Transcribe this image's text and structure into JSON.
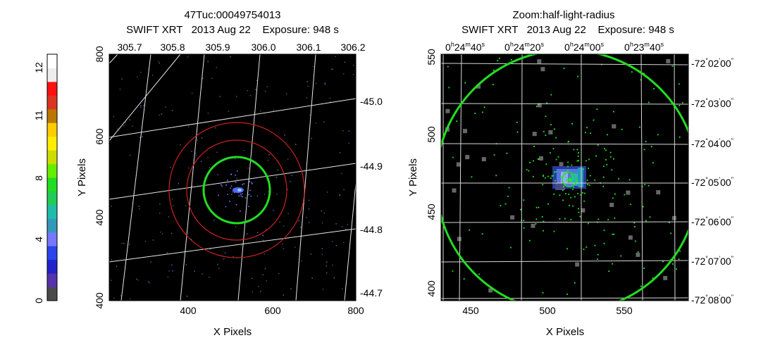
{
  "colorbar": {
    "tick_labels": [
      "0",
      "4",
      "8",
      "11",
      "12"
    ],
    "colors": [
      "#4a4a4a",
      "#5533aa",
      "#2222cc",
      "#2a44ee",
      "#7777ff",
      "#3399bb",
      "#22bbaa",
      "#22cc55",
      "#22dd22",
      "#66ee00",
      "#ccdd00",
      "#ffee00",
      "#ffcc00",
      "#bb7700",
      "#dd3322",
      "#ff1111",
      "#eeeeee",
      "#ffffff"
    ]
  },
  "left_panel": {
    "title_line1": "47Tuc:00049754013",
    "title_line2": "SWIFT XRT   2013 Aug 22    Exposure: 948 s",
    "xlabel": "X Pixels",
    "ylabel": "Y Pixels",
    "x_ticks": [
      "400",
      "600",
      "800"
    ],
    "y_ticks": [
      "400",
      "600",
      "800"
    ],
    "ra_ticks": [
      "305.7",
      "305.8",
      "305.9",
      "306.0",
      "306.1",
      "306.2"
    ],
    "dec_ticks": [
      "-45.0",
      "-44.9",
      "-44.8",
      "-44.7"
    ],
    "circle_colors": {
      "outer": "#cc2222",
      "inner": "#22dd22"
    }
  },
  "right_panel": {
    "title_line1": "Zoom:half-light-radius",
    "title_line2": "SWIFT XRT   2013 Aug 22    Exposure: 948 s",
    "xlabel": "X Pixels",
    "ylabel": "Y Pixels",
    "x_ticks": [
      "450",
      "500",
      "550"
    ],
    "y_ticks": [
      "400",
      "450",
      "500",
      "550"
    ],
    "ra_ticks": [
      {
        "h": "0",
        "m": "24",
        "s": "40"
      },
      {
        "h": "0",
        "m": "24",
        "s": "20"
      },
      {
        "h": "0",
        "m": "24",
        "s": "00"
      },
      {
        "h": "0",
        "m": "23",
        "s": "40"
      }
    ],
    "dec_ticks": [
      {
        "d": "-72",
        "m": "02",
        "s": "00"
      },
      {
        "d": "-72",
        "m": "03",
        "s": "00"
      },
      {
        "d": "-72",
        "m": "04",
        "s": "00"
      },
      {
        "d": "-72",
        "m": "05",
        "s": "00"
      },
      {
        "d": "-72",
        "m": "06",
        "s": "00"
      },
      {
        "d": "-72",
        "m": "07",
        "s": "00"
      },
      {
        "d": "-72",
        "m": "08",
        "s": "00"
      }
    ]
  }
}
